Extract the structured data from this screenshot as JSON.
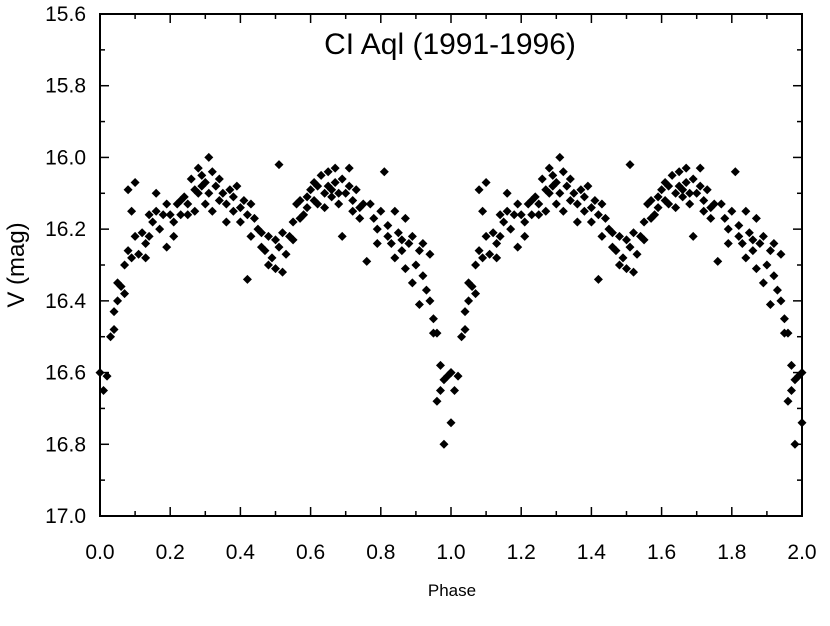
{
  "chart_data": {
    "type": "scatter",
    "title": "CI Aql (1991-1996)",
    "xlabel": "Phase",
    "ylabel": "V (mag)",
    "xlim": [
      0.0,
      2.0
    ],
    "ylim": [
      17.0,
      15.6
    ],
    "y_inverted": true,
    "grid": false,
    "legend": "none",
    "marker": "diamond",
    "marker_color": "#000000",
    "x_ticks": [
      "0.0",
      "0.2",
      "0.4",
      "0.6",
      "0.8",
      "1.0",
      "1.2",
      "1.4",
      "1.6",
      "1.8",
      "2.0"
    ],
    "y_ticks": [
      "15.6",
      "15.8",
      "16.0",
      "16.2",
      "16.4",
      "16.6",
      "16.8",
      "17.0"
    ],
    "series": [
      {
        "points": [
          [
            0.0,
            16.6
          ],
          [
            0.01,
            16.65
          ],
          [
            0.02,
            16.61
          ],
          [
            0.03,
            16.5
          ],
          [
            0.04,
            16.43
          ],
          [
            0.04,
            16.48
          ],
          [
            0.05,
            16.4
          ],
          [
            0.05,
            16.35
          ],
          [
            0.06,
            16.36
          ],
          [
            0.07,
            16.3
          ],
          [
            0.07,
            16.38
          ],
          [
            0.08,
            16.26
          ],
          [
            0.08,
            16.09
          ],
          [
            0.09,
            16.15
          ],
          [
            0.09,
            16.28
          ],
          [
            0.1,
            16.22
          ],
          [
            0.1,
            16.07
          ],
          [
            0.11,
            16.27
          ],
          [
            0.12,
            16.21
          ],
          [
            0.13,
            16.28
          ],
          [
            0.13,
            16.24
          ],
          [
            0.14,
            16.16
          ],
          [
            0.14,
            16.22
          ],
          [
            0.15,
            16.18
          ],
          [
            0.16,
            16.15
          ],
          [
            0.16,
            16.1
          ],
          [
            0.17,
            16.2
          ],
          [
            0.18,
            16.16
          ],
          [
            0.19,
            16.25
          ],
          [
            0.19,
            16.13
          ],
          [
            0.2,
            16.16
          ],
          [
            0.21,
            16.18
          ],
          [
            0.21,
            16.22
          ],
          [
            0.22,
            16.13
          ],
          [
            0.23,
            16.12
          ],
          [
            0.23,
            16.16
          ],
          [
            0.24,
            16.11
          ],
          [
            0.25,
            16.13
          ],
          [
            0.25,
            16.16
          ],
          [
            0.26,
            16.06
          ],
          [
            0.27,
            16.09
          ],
          [
            0.27,
            16.15
          ],
          [
            0.28,
            16.03
          ],
          [
            0.28,
            16.1
          ],
          [
            0.29,
            16.08
          ],
          [
            0.29,
            16.05
          ],
          [
            0.3,
            16.13
          ],
          [
            0.3,
            16.07
          ],
          [
            0.31,
            16.0
          ],
          [
            0.31,
            16.1
          ],
          [
            0.32,
            16.04
          ],
          [
            0.32,
            16.15
          ],
          [
            0.33,
            16.08
          ],
          [
            0.34,
            16.12
          ],
          [
            0.34,
            16.06
          ],
          [
            0.35,
            16.1
          ],
          [
            0.36,
            16.13
          ],
          [
            0.36,
            16.18
          ],
          [
            0.37,
            16.09
          ],
          [
            0.38,
            16.11
          ],
          [
            0.38,
            16.15
          ],
          [
            0.39,
            16.08
          ],
          [
            0.4,
            16.14
          ],
          [
            0.4,
            16.18
          ],
          [
            0.41,
            16.12
          ],
          [
            0.42,
            16.16
          ],
          [
            0.42,
            16.34
          ],
          [
            0.43,
            16.22
          ],
          [
            0.43,
            16.13
          ],
          [
            0.44,
            16.17
          ],
          [
            0.45,
            16.2
          ],
          [
            0.46,
            16.25
          ],
          [
            0.46,
            16.21
          ],
          [
            0.47,
            16.26
          ],
          [
            0.48,
            16.22
          ],
          [
            0.48,
            16.3
          ],
          [
            0.49,
            16.28
          ],
          [
            0.5,
            16.23
          ],
          [
            0.5,
            16.31
          ],
          [
            0.51,
            16.02
          ],
          [
            0.51,
            16.25
          ],
          [
            0.52,
            16.21
          ],
          [
            0.52,
            16.32
          ],
          [
            0.53,
            16.27
          ],
          [
            0.54,
            16.22
          ],
          [
            0.55,
            16.18
          ],
          [
            0.55,
            16.23
          ],
          [
            0.56,
            16.13
          ],
          [
            0.57,
            16.17
          ],
          [
            0.57,
            16.12
          ],
          [
            0.58,
            16.16
          ],
          [
            0.59,
            16.11
          ],
          [
            0.59,
            16.14
          ],
          [
            0.6,
            16.09
          ],
          [
            0.61,
            16.12
          ],
          [
            0.61,
            16.07
          ],
          [
            0.62,
            16.13
          ],
          [
            0.62,
            16.08
          ],
          [
            0.63,
            16.05
          ],
          [
            0.64,
            16.1
          ],
          [
            0.64,
            16.14
          ],
          [
            0.65,
            16.08
          ],
          [
            0.65,
            16.04
          ],
          [
            0.66,
            16.11
          ],
          [
            0.66,
            16.09
          ],
          [
            0.67,
            16.07
          ],
          [
            0.67,
            16.03
          ],
          [
            0.68,
            16.1
          ],
          [
            0.68,
            16.13
          ],
          [
            0.69,
            16.06
          ],
          [
            0.69,
            16.22
          ],
          [
            0.7,
            16.1
          ],
          [
            0.71,
            16.08
          ],
          [
            0.71,
            16.03
          ],
          [
            0.72,
            16.12
          ],
          [
            0.72,
            16.15
          ],
          [
            0.73,
            16.09
          ],
          [
            0.74,
            16.14
          ],
          [
            0.74,
            16.17
          ],
          [
            0.75,
            16.13
          ],
          [
            0.76,
            16.29
          ],
          [
            0.77,
            16.13
          ],
          [
            0.78,
            16.17
          ],
          [
            0.79,
            16.2
          ],
          [
            0.79,
            16.24
          ],
          [
            0.8,
            16.15
          ],
          [
            0.81,
            16.04
          ],
          [
            0.82,
            16.22
          ],
          [
            0.82,
            16.19
          ],
          [
            0.83,
            16.24
          ],
          [
            0.84,
            16.15
          ],
          [
            0.84,
            16.28
          ],
          [
            0.85,
            16.21
          ],
          [
            0.86,
            16.23
          ],
          [
            0.86,
            16.26
          ],
          [
            0.87,
            16.17
          ],
          [
            0.87,
            16.31
          ],
          [
            0.88,
            16.24
          ],
          [
            0.89,
            16.22
          ],
          [
            0.89,
            16.35
          ],
          [
            0.9,
            16.3
          ],
          [
            0.91,
            16.26
          ],
          [
            0.91,
            16.41
          ],
          [
            0.92,
            16.33
          ],
          [
            0.92,
            16.24
          ],
          [
            0.93,
            16.37
          ],
          [
            0.94,
            16.4
          ],
          [
            0.94,
            16.27
          ],
          [
            0.95,
            16.49
          ],
          [
            0.95,
            16.45
          ],
          [
            0.96,
            16.68
          ],
          [
            0.96,
            16.49
          ],
          [
            0.97,
            16.65
          ],
          [
            0.97,
            16.58
          ],
          [
            0.98,
            16.8
          ],
          [
            0.98,
            16.62
          ],
          [
            0.99,
            16.61
          ],
          [
            1.0,
            16.74
          ],
          [
            1.0,
            16.6
          ]
        ],
        "repeat_offset": 1.0
      }
    ]
  }
}
